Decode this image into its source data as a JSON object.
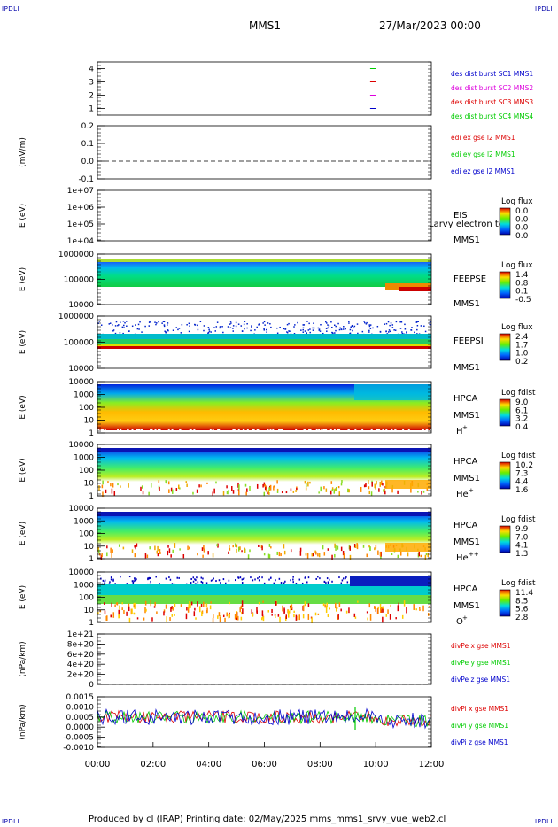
{
  "corners": {
    "tl": "IPDLI",
    "tr": "IPDLI",
    "bl": "IPDLI",
    "br": "IPDLI"
  },
  "header": {
    "spacecraft": "MMS1",
    "datetime": "27/Mar/2023 00:00"
  },
  "footer": {
    "credit": "Produced by cl (IRAP)   Printing date: 02/May/2025   mms_mms1_srvy_vue_web2.cl"
  },
  "colors": {
    "red": "#dd0000",
    "green": "#00cc00",
    "blue": "#0000cc",
    "magenta": "#dd00dd",
    "darkblue": "#000099"
  },
  "chart_data": [
    {
      "type": "line",
      "name": "burst",
      "ylabel": "",
      "yticks": [
        "4",
        "3",
        "2",
        "1"
      ],
      "ylim": [
        0.5,
        4.5
      ],
      "legend": [
        {
          "label": "des dist burst SC1 MMS1",
          "color": "#0000cc"
        },
        {
          "label": "des dist burst SC2 MMS2",
          "color": "#dd00dd"
        },
        {
          "label": "des dist burst SC3 MMS3",
          "color": "#dd0000"
        },
        {
          "label": "des dist burst SC4 MMS4",
          "color": "#00cc00"
        }
      ],
      "segments": [
        {
          "sc": 4,
          "x": [
            9.8,
            10.0
          ],
          "color": "#00cc00"
        },
        {
          "sc": 3,
          "x": [
            9.8,
            10.0
          ],
          "color": "#dd0000"
        },
        {
          "sc": 2,
          "x": [
            9.8,
            10.0
          ],
          "color": "#dd00dd"
        },
        {
          "sc": 1,
          "x": [
            9.8,
            10.0
          ],
          "color": "#0000cc"
        }
      ]
    },
    {
      "type": "line",
      "name": "edi",
      "ylabel": "(mV/m)",
      "yticks": [
        "0.2",
        "0.1",
        "0.0",
        "-0.1"
      ],
      "ylim": [
        -0.1,
        0.2
      ],
      "zero_line": true,
      "legend": [
        {
          "label": "edi ex gse l2 MMS1",
          "color": "#dd0000"
        },
        {
          "label": "edi ey gse l2 MMS1",
          "color": "#00cc00"
        },
        {
          "label": "edi ez gse l2 MMS1",
          "color": "#0000cc"
        }
      ]
    },
    {
      "type": "heatmap",
      "name": "eis",
      "ylabel": "E (eV)",
      "yticks": [
        "1e+07",
        "1e+06",
        "1e+05",
        "1e+04"
      ],
      "label1": "EIS",
      "label2": "MMS1",
      "overlay": "Larvy electron to",
      "cbar_title": "Log flux",
      "cbar_ticks": [
        "0.0",
        "0.0",
        "0.0",
        "0.0"
      ],
      "empty": true
    },
    {
      "type": "heatmap",
      "name": "feeps-e",
      "ylabel": "E (eV)",
      "yticks": [
        "1000000",
        "100000",
        "10000"
      ],
      "label1": "FEEPSE",
      "label2": "MMS1",
      "cbar_title": "Log flux",
      "cbar_ticks": [
        "1.4",
        "0.8",
        "0.1",
        "-0.5"
      ]
    },
    {
      "type": "heatmap",
      "name": "feeps-i",
      "ylabel": "E (eV)",
      "yticks": [
        "1000000",
        "100000",
        "10000"
      ],
      "label1": "FEEPSI",
      "label2": "MMS1",
      "cbar_title": "Log flux",
      "cbar_ticks": [
        "2.4",
        "1.7",
        "1.0",
        "0.2"
      ]
    },
    {
      "type": "heatmap",
      "name": "hpca-h",
      "ylabel": "E (eV)",
      "yticks": [
        "10000",
        "1000",
        "100",
        "10",
        "1"
      ],
      "label1": "HPCA",
      "label2": "MMS1",
      "species": "H",
      "charge": "+",
      "cbar_title": "Log fdist",
      "cbar_ticks": [
        "9.0",
        "6.1",
        "3.2",
        "0.4"
      ]
    },
    {
      "type": "heatmap",
      "name": "hpca-he",
      "ylabel": "E (eV)",
      "yticks": [
        "10000",
        "1000",
        "100",
        "10",
        "1"
      ],
      "label1": "HPCA",
      "label2": "MMS1",
      "species": "He",
      "charge": "+",
      "cbar_title": "Log fdist",
      "cbar_ticks": [
        "10.2",
        "7.3",
        "4.4",
        "1.6"
      ]
    },
    {
      "type": "heatmap",
      "name": "hpca-he2",
      "ylabel": "E (eV)",
      "yticks": [
        "10000",
        "1000",
        "100",
        "10",
        "1"
      ],
      "label1": "HPCA",
      "label2": "MMS1",
      "species": "He",
      "charge": "++",
      "cbar_title": "Log fdist",
      "cbar_ticks": [
        "9.9",
        "7.0",
        "4.1",
        "1.3"
      ]
    },
    {
      "type": "heatmap",
      "name": "hpca-o",
      "ylabel": "E (eV)",
      "yticks": [
        "10000",
        "1000",
        "100",
        "10",
        "1"
      ],
      "label1": "HPCA",
      "label2": "MMS1",
      "species": "O",
      "charge": "+",
      "cbar_title": "Log fdist",
      "cbar_ticks": [
        "11.4",
        "8.5",
        "5.6",
        "2.8"
      ]
    },
    {
      "type": "line",
      "name": "divpe",
      "ylabel": "(nPa/km)",
      "yticks": [
        "1e+21",
        "8e+20",
        "6e+20",
        "4e+20",
        "2e+20",
        "0"
      ],
      "ylim": [
        0,
        1e+21
      ],
      "zero_line": true,
      "legend": [
        {
          "label": "divPe x gse MMS1",
          "color": "#dd0000"
        },
        {
          "label": "divPe y gse MMS1",
          "color": "#00cc00"
        },
        {
          "label": "divPe z gse MMS1",
          "color": "#0000cc"
        }
      ]
    },
    {
      "type": "line",
      "name": "divpi",
      "ylabel": "(nPa/km)",
      "yticks": [
        "0.0015",
        "0.0010",
        "0.0005",
        "0.0000",
        "-0.0005",
        "-0.0010"
      ],
      "ylim": [
        -0.0013,
        0.0015
      ],
      "legend": [
        {
          "label": "divPi x gse MMS1",
          "color": "#dd0000"
        },
        {
          "label": "divPi y gse MMS1",
          "color": "#00cc00"
        },
        {
          "label": "divPi z gse MMS1",
          "color": "#0000cc"
        }
      ]
    }
  ],
  "xaxis": {
    "ticks": [
      "00:00",
      "02:00",
      "04:00",
      "06:00",
      "08:00",
      "10:00",
      "12:00"
    ],
    "range_hours": [
      0,
      12
    ]
  }
}
